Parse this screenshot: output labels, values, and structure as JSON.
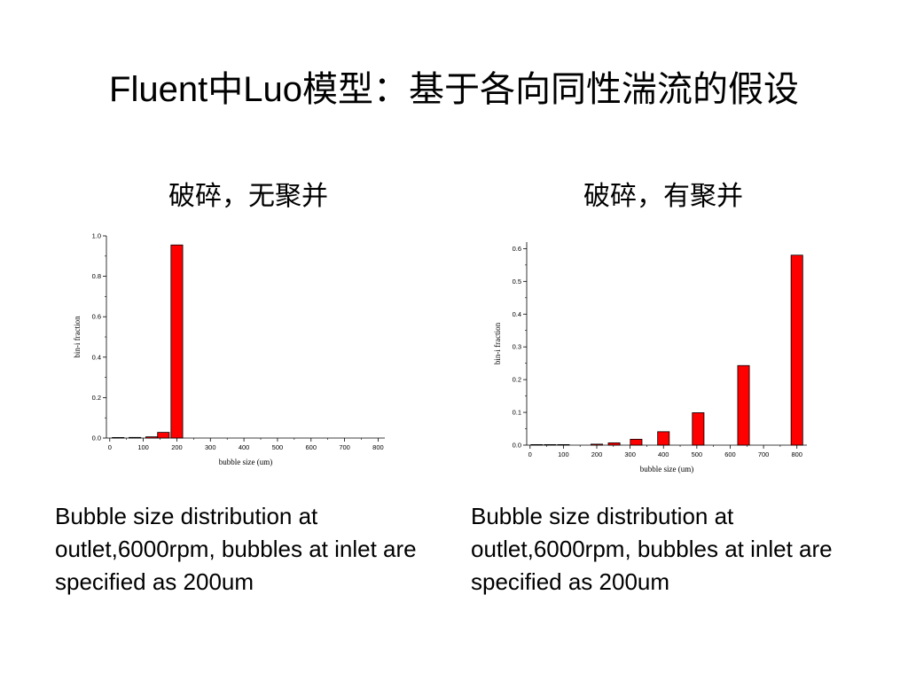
{
  "slide": {
    "title": "Fluent中Luo模型：基于各向同性湍流的假设",
    "left_subtitle": "破碎，无聚并",
    "right_subtitle": "破碎，有聚并",
    "left_caption": "Bubble size distribution at outlet,6000rpm, bubbles at inlet are specified as 200um",
    "right_caption": "Bubble size distribution at outlet,6000rpm, bubbles at inlet are specified as 200um"
  },
  "chart_data": [
    {
      "type": "bar",
      "xlabel": "bubble size (um)",
      "ylabel": "bin-i fraction",
      "xlim": [
        -10,
        820
      ],
      "ylim": [
        0,
        1.0
      ],
      "xticks": [
        0,
        100,
        200,
        300,
        400,
        500,
        600,
        700,
        800
      ],
      "yticks": [
        0.0,
        0.2,
        0.4,
        0.6,
        0.8,
        1.0
      ],
      "ytick_labels": [
        "0.0",
        "0.2",
        "0.4",
        "0.6",
        "0.8",
        "1.0"
      ],
      "bar_width": 35,
      "color": "#ff0000",
      "x": [
        25,
        75,
        125,
        160,
        200
      ],
      "values": [
        0.002,
        0.003,
        0.006,
        0.028,
        0.955
      ]
    },
    {
      "type": "bar",
      "xlabel": "bubble size (um)",
      "ylabel": "bin-i fraction",
      "xlim": [
        -10,
        830
      ],
      "ylim": [
        0,
        0.62
      ],
      "xticks": [
        0,
        100,
        200,
        300,
        400,
        500,
        600,
        700,
        800
      ],
      "yticks": [
        0.0,
        0.1,
        0.2,
        0.3,
        0.4,
        0.5,
        0.6
      ],
      "ytick_labels": [
        "0.0",
        "0.1",
        "0.2",
        "0.3",
        "0.4",
        "0.5",
        "0.6"
      ],
      "bar_width": 35,
      "color": "#ff0000",
      "x": [
        20,
        60,
        100,
        200,
        252,
        318,
        400,
        504,
        640,
        800
      ],
      "values": [
        0.001,
        0.001,
        0.001,
        0.003,
        0.007,
        0.018,
        0.041,
        0.099,
        0.243,
        0.58
      ]
    }
  ]
}
